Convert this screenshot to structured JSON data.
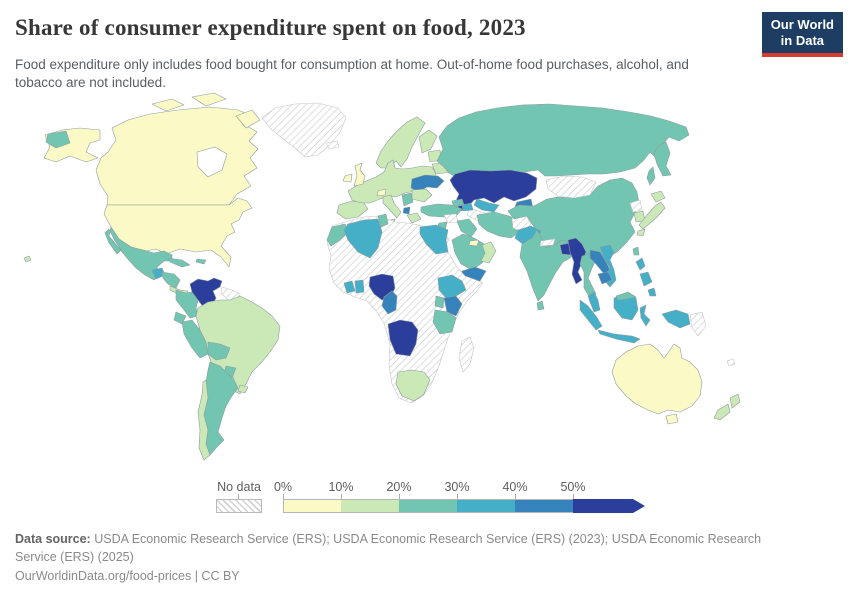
{
  "header": {
    "title": "Share of consumer expenditure spent on food, 2023",
    "subtitle": "Food expenditure only includes food bought for consumption at home. Out-of-home food purchases, alcohol, and tobacco are not included."
  },
  "logo": {
    "line1": "Our World",
    "line2": "in Data"
  },
  "colors": {
    "logo_bg": "#1d3d63",
    "logo_stripe": "#d73c32",
    "title_text": "#373737",
    "subtitle_text": "#5a5e62",
    "footer_text": "#8a8a8a",
    "legend_text": "#5e5e5e",
    "country_stroke": "#8f9ca0",
    "no_data_stroke": "#c6c6c6",
    "ocean": "#ffffff"
  },
  "chart_data": {
    "type": "choropleth-map",
    "title": "Share of consumer expenditure spent on food, 2023",
    "unit": "% of consumer expenditure",
    "year": "2023",
    "legend": {
      "no_data_label": "No data",
      "tick_labels": [
        "0%",
        "10%",
        "20%",
        "30%",
        "40%",
        "50%"
      ],
      "bin_labels": [
        "0-10%",
        "10-20%",
        "20-30%",
        "30-40%",
        "40-50%",
        "50%+"
      ],
      "bin_colors": [
        "#fbf9c5",
        "#cbe8b7",
        "#72c6b1",
        "#44afc7",
        "#3682bb",
        "#2c3e9b"
      ],
      "no_data_pattern": "diagonal-hatch",
      "open_ended_max": true,
      "position": "bottom"
    },
    "regions": {
      "canada": "0-10%",
      "canada-arctic": "0-10%",
      "alaska": "0-10%",
      "usa": "0-10%",
      "hawaii": "10-20%",
      "greenland": "no-data",
      "iceland": "no-data",
      "chukotka": "20-30%",
      "mexico": "20-30%",
      "guatemala": "30-40%",
      "honduras-nicaragua": "20-30%",
      "costa-rica-panama": "10-20%",
      "cuba": "20-30%",
      "hispaniola": "20-30%",
      "colombia": "20-30%",
      "venezuela": "50%+",
      "guyanas": "no-data",
      "ecuador": "20-30%",
      "peru": "20-30%",
      "brazil": "10-20%",
      "bolivia": "20-30%",
      "paraguay": "20-30%",
      "uruguay": "10-20%",
      "argentina": "20-30%",
      "chile": "10-20%",
      "united-kingdom": "0-10%",
      "ireland": "0-10%",
      "scandinavia": "10-20%",
      "finland": "10-20%",
      "baltics": "10-20%",
      "belarus": "10-20%",
      "western-europe": "10-20%",
      "iberia": "10-20%",
      "italy": "10-20%",
      "switzerland": "0-10%",
      "ukraine": "40-50%",
      "romania-bulgaria": "10-20%",
      "serbia-balkans": "20-30%",
      "albania": "40-50%",
      "greece": "10-20%",
      "russia": "20-30%",
      "kamchatka": "20-30%",
      "sakhalin": "20-30%",
      "kazakhstan": "50%+",
      "uzbekistan": "30-40%",
      "turkmenistan": "no-data",
      "kyrgyzstan-tajikistan": "40-50%",
      "georgia": "20-30%",
      "azerbaijan": "30-40%",
      "turkey": "20-30%",
      "syria": "no-data",
      "jordan-israel": "20-30%",
      "iraq": "20-30%",
      "iran": "20-30%",
      "afghanistan": "no-data",
      "saudi-arabia": "20-30%",
      "uae": "0-10%",
      "oman": "10-20%",
      "yemen": "40-50%",
      "africa-interior": "no-data",
      "morocco": "20-30%",
      "algeria": "30-40%",
      "tunisia": "20-30%",
      "egypt": "30-40%",
      "cote-divoire": "30-40%",
      "ghana": "30-40%",
      "nigeria": "50%+",
      "cameroon": "40-50%",
      "ethiopia": "30-40%",
      "kenya": "40-50%",
      "uganda": "20-30%",
      "tanzania": "20-30%",
      "angola": "50%+",
      "south-africa": "10-20%",
      "madagascar": "no-data",
      "china": "20-30%",
      "mongolia": "no-data",
      "pakistan": "30-40%",
      "india": "20-30%",
      "nepal": "no-data",
      "bangladesh": "50%+",
      "sri-lanka": "20-30%",
      "north-korea": "no-data",
      "south-korea": "10-20%",
      "japan": "10-20%",
      "taiwan": "20-30%",
      "myanmar": "50%+",
      "thailand": "20-30%",
      "laos": "40-50%",
      "vietnam": "30-40%",
      "cambodia": "40-50%",
      "malay-peninsula": "30-40%",
      "sumatra": "30-40%",
      "java": "30-40%",
      "borneo": "30-40%",
      "borneo-malaysia": "20-30%",
      "sulawesi": "30-40%",
      "west-papua": "30-40%",
      "papua-new-guinea": "no-data",
      "philippines": "30-40%",
      "australia": "0-10%",
      "tasmania": "0-10%",
      "new-zealand": "10-20%",
      "new-caledonia": "no-data"
    }
  },
  "footer": {
    "datasource_label": "Data source:",
    "datasource_text": " USDA Economic Research Service (ERS); USDA Economic Research Service (ERS) (2023); USDA Economic Research Service (ERS) (2025)",
    "license": "OurWorldinData.org/food-prices | CC BY"
  }
}
